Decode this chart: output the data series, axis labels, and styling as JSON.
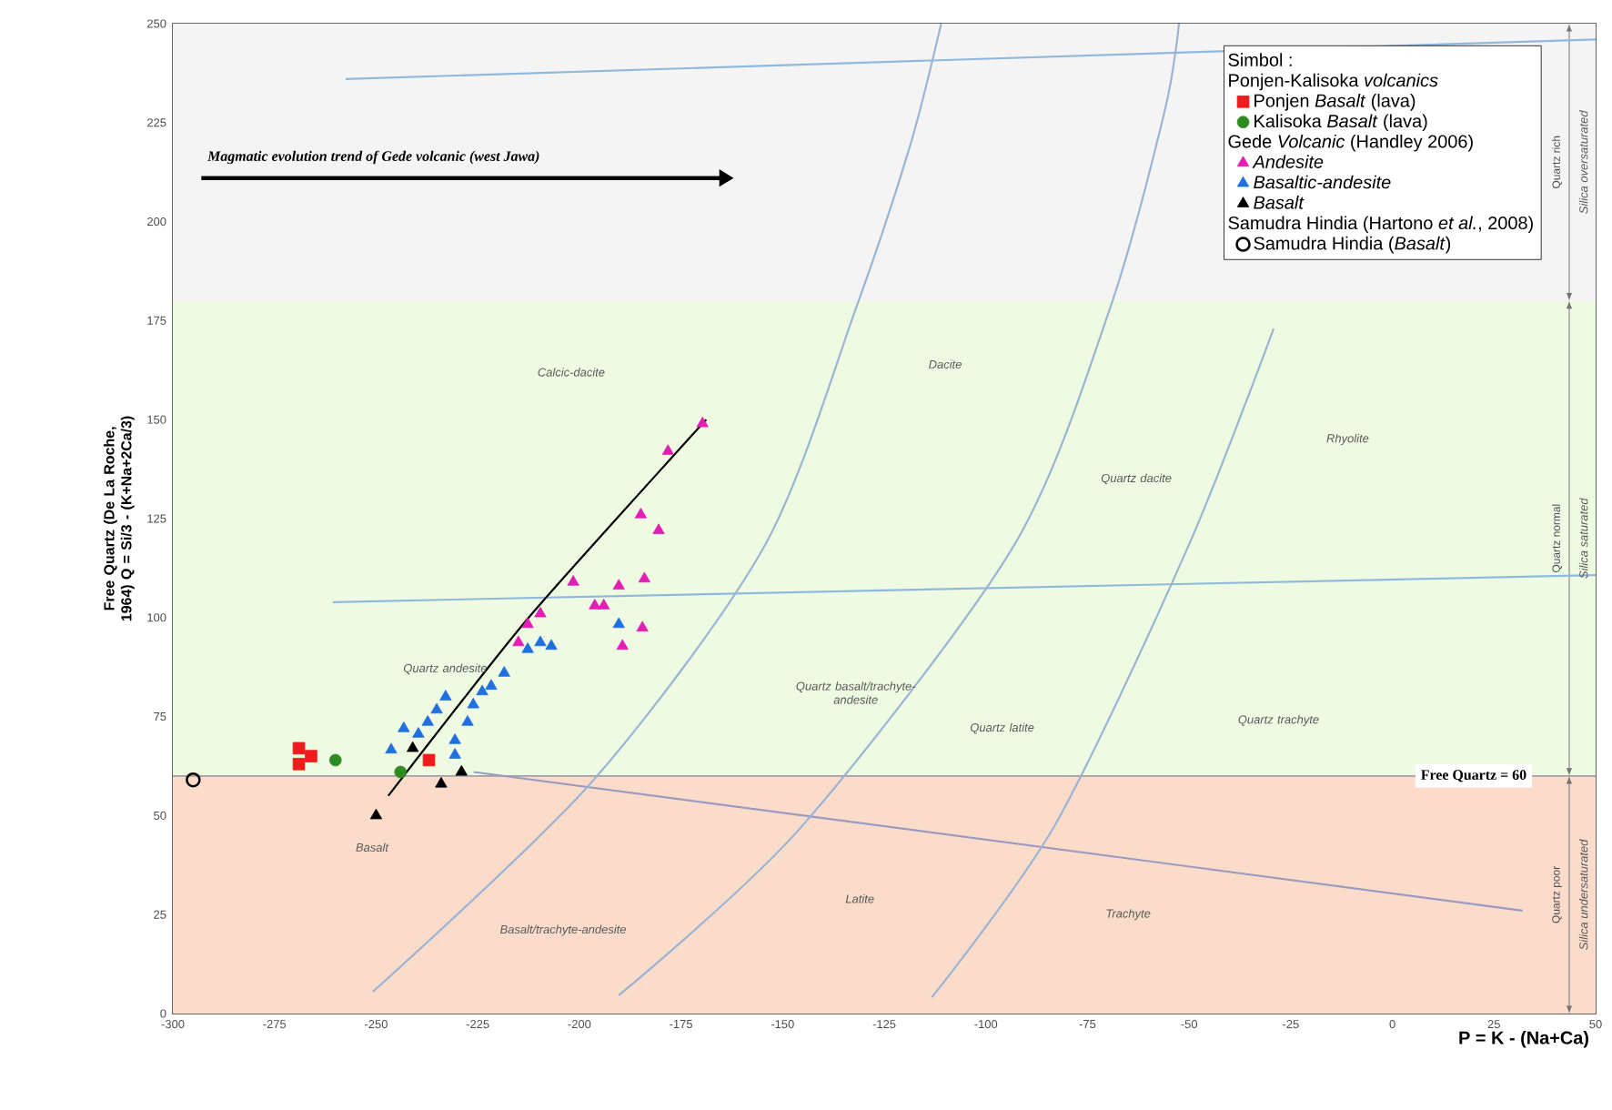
{
  "chart_data": {
    "type": "scatter",
    "xlabel": "P = K - (Na+Ca)",
    "ylabel": "Free Quartz (De La Roche, 1964) Q = Si/3 - (K+Na+2Ca/3)",
    "legend_title": "Simbol :",
    "xlim": [
      -300,
      50
    ],
    "ylim": [
      0,
      250
    ],
    "xticks": [
      -300,
      -275,
      -250,
      -225,
      -200,
      -175,
      -150,
      -125,
      -100,
      -75,
      -50,
      -25,
      0,
      25,
      50
    ],
    "yticks": [
      0,
      25,
      50,
      75,
      100,
      125,
      150,
      175,
      200,
      225,
      250
    ],
    "grid": true,
    "legend": "top right",
    "series": [
      {
        "name": "Ponjen *Basalt* (lava)",
        "color": "#ee1c1c",
        "marker": "square",
        "x": [
          -269,
          -269,
          -266,
          -237
        ],
        "values": [
          67,
          63,
          65,
          64
        ]
      },
      {
        "name": "Kalisoka *Basalt* (lava)",
        "color": "#2e8b22",
        "marker": "circle",
        "x": [
          -260,
          -244
        ],
        "values": [
          64,
          61
        ]
      },
      {
        "name": "*Andesite*",
        "color": "#e21fb4",
        "marker": "triangle",
        "x": [
          -215,
          -212.7,
          -209.6,
          -201.5,
          -196.2,
          -194,
          -190.3,
          -184,
          -184.5,
          -189.4,
          -184.9,
          -180.5,
          -178.2,
          -169.7
        ],
        "values": [
          93.7,
          98.3,
          101,
          109,
          103,
          103,
          108,
          109.8,
          97.4,
          92.8,
          126,
          122,
          142,
          149
        ]
      },
      {
        "name": "*Basaltic-andesite*",
        "color": "#1f6fe0",
        "marker": "triangle",
        "x": [
          -246.3,
          -243.2,
          -239.6,
          -237.3,
          -235.1,
          -232.9,
          -230.6,
          -227.5,
          -226.1,
          -223.9,
          -221.7,
          -218.5,
          -212.7,
          -209.6,
          -206.9,
          -190.3,
          -230.6
        ],
        "values": [
          66.6,
          72,
          70.6,
          73.6,
          76.7,
          80,
          69,
          73.6,
          78,
          81.3,
          82.7,
          86,
          92,
          93.7,
          92.8,
          98.3,
          65.3
        ]
      },
      {
        "name": "*Basalt*",
        "color": "#000000",
        "marker": "triangle",
        "x": [
          -250,
          -234,
          -229,
          -241
        ],
        "values": [
          50,
          58,
          61,
          67
        ]
      },
      {
        "name": "Samudra Hindia (*Basalt*)",
        "color": "#000000",
        "marker": "open circle",
        "x": [
          -295
        ],
        "values": [
          59
        ]
      },
      {
        "type": "line",
        "color": "#8fb8dc",
        "marker": "none",
        "x": [
          -257.5,
          50
        ],
        "values": [
          236,
          246
        ]
      },
      {
        "type": "line",
        "color": "#8fb8dc",
        "marker": "none",
        "x": [
          -260.6,
          50
        ],
        "values": [
          103.9,
          110.7
        ]
      },
      {
        "type": "line",
        "color": "#9b9bc0",
        "marker": "none",
        "x": [
          -226,
          32
        ],
        "values": [
          61,
          26
        ]
      },
      {
        "type": "line",
        "color": "#9bb4d4",
        "marker": "none",
        "x": [
          -250.8,
          -197,
          -154.5,
          -132,
          -118.7,
          -111
        ],
        "values": [
          5.5,
          58.4,
          118,
          178,
          219,
          250
        ]
      },
      {
        "type": "line",
        "color": "#9bb4d4",
        "marker": "none",
        "x": [
          -190.3,
          -145.6,
          -93.2,
          -69.5,
          -56,
          -52.5
        ],
        "values": [
          4.6,
          46.9,
          118,
          178,
          228,
          250
        ]
      },
      {
        "type": "line",
        "color": "#9bb4d4",
        "marker": "none",
        "x": [
          -113.3,
          -82.9,
          -50.2,
          -29.2
        ],
        "values": [
          4.1,
          47.8,
          118,
          173
        ]
      },
      {
        "type": "line",
        "color": "#000000",
        "marker": "none",
        "x": [
          -247,
          -230.6,
          -212.7,
          -191.7,
          -168.8
        ],
        "values": [
          55,
          76.7,
          99.7,
          124,
          150
        ]
      }
    ],
    "bands": [
      {
        "axis": "y",
        "from": 0,
        "to": 60,
        "label": "Quartz poor",
        "color": "#fbdccb"
      },
      {
        "axis": "y",
        "from": 60,
        "to": 180,
        "label": "Quartz normal",
        "color": "#eefbe2"
      },
      {
        "axis": "y",
        "from": 180,
        "to": 250,
        "label": "Quartz rich",
        "color": "#f4f4f4"
      }
    ],
    "ref_lines": [
      {
        "axis": "y",
        "value": 60,
        "label": "Free Quartz = 60",
        "color": "#a0a0a0"
      }
    ],
    "annotations": [
      "Ponjen-Kalisoka *volcanics*",
      "Gede *Volcanic* (Handley 2006)",
      "Samudra Hindia (Hartono *et al.*, 2008)",
      "Magmatic  evolution trend of Gede volcanic (west Jawa)",
      "Calcic-dacite",
      "Dacite",
      "Rhyolite",
      "Quartz dacite",
      "Quartz andesite",
      "Quartz basalt/trachyte-andesite",
      "Quartz latite",
      "Quartz trachyte",
      "Basalt",
      "Basalt/trachyte-andesite",
      "Latite",
      "Trachyte",
      "Silica oversaturated",
      "Silica saturated",
      "Silica undersaturated"
    ]
  }
}
